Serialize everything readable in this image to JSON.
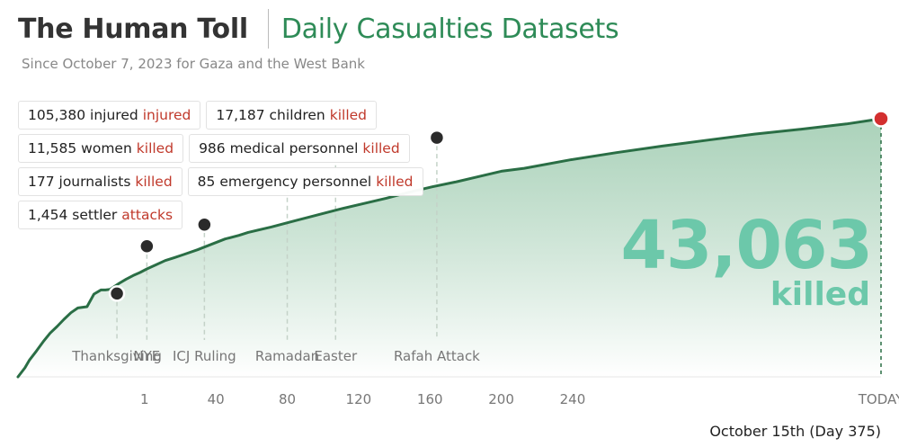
{
  "header": {
    "title": "The Human Toll",
    "subtitle": "Daily Casualties Datasets",
    "caption": "Since October 7, 2023 for Gaza and the West Bank"
  },
  "stats": [
    [
      {
        "number": "105,380",
        "label": "injured",
        "accent": "injured"
      },
      {
        "number": "17,187",
        "label": "children",
        "accent": "killed"
      }
    ],
    [
      {
        "number": "11,585",
        "label": "women",
        "accent": "killed"
      },
      {
        "number": "986",
        "label": "medical personnel",
        "accent": "killed"
      }
    ],
    [
      {
        "number": "177",
        "label": "journalists",
        "accent": "killed"
      },
      {
        "number": "85",
        "label": "emergency personnel",
        "accent": "killed"
      }
    ],
    [
      {
        "number": "1,454",
        "label": "settler",
        "accent": "attacks"
      }
    ]
  ],
  "total": {
    "value": "43,063",
    "label": "killed"
  },
  "footer": {
    "date": "October 15th (Day 375)"
  },
  "colors": {
    "line": "#2a6e45",
    "area_top": "#8fc3a3",
    "accent_red": "#c0392b",
    "big_number": "#6cc8aa",
    "marker_dark": "#2b2b2b",
    "marker_end": "#d32f2f"
  },
  "chart_data": {
    "type": "area",
    "xlabel": "",
    "ylabel": "",
    "x_ticks": [
      {
        "value": 55,
        "label": "1"
      },
      {
        "value": 86,
        "label": "40"
      },
      {
        "value": 117,
        "label": "80"
      },
      {
        "value": 148,
        "label": "120"
      },
      {
        "value": 179,
        "label": "160"
      },
      {
        "value": 210,
        "label": "200"
      },
      {
        "value": 241,
        "label": "240"
      },
      {
        "value": 375,
        "label": "TODAY"
      }
    ],
    "x_range": [
      0,
      375
    ],
    "y_range": [
      0,
      43063
    ],
    "series": [
      {
        "x": [
          0,
          3,
          5,
          8,
          11,
          14,
          17,
          20,
          23,
          26,
          30,
          33,
          36,
          38,
          40,
          44,
          47,
          50,
          53,
          56,
          60,
          64,
          68,
          72,
          78,
          84,
          90,
          96,
          100,
          110,
          120,
          130,
          140,
          150,
          160,
          170,
          180,
          190,
          200,
          210,
          220,
          240,
          260,
          280,
          300,
          320,
          340,
          360,
          375
        ],
        "y": [
          0,
          1500,
          2800,
          4300,
          5900,
          7300,
          8400,
          9600,
          10700,
          11500,
          11700,
          13800,
          14500,
          14500,
          14600,
          15600,
          16300,
          16900,
          17400,
          18000,
          18700,
          19400,
          19900,
          20400,
          21200,
          22100,
          23000,
          23600,
          24100,
          25000,
          26000,
          27000,
          28000,
          28900,
          29800,
          30800,
          31700,
          32500,
          33400,
          34300,
          34800,
          36200,
          37400,
          38500,
          39500,
          40500,
          41300,
          42200,
          43063
        ]
      }
    ],
    "events": [
      {
        "label": "Thanksgiving",
        "x": 43,
        "y": 13900,
        "marker": true
      },
      {
        "label": "NYE",
        "x": 56,
        "y": 21800,
        "marker": true
      },
      {
        "label": "ICJ Ruling",
        "x": 81,
        "y": 25400,
        "marker": true
      },
      {
        "label": "Ramadan",
        "x": 117,
        "y": 32600,
        "marker": false
      },
      {
        "label": "Easter",
        "x": 138,
        "y": 35300,
        "marker": false
      },
      {
        "label": "Rafah Attack",
        "x": 182,
        "y": 39900,
        "marker": true
      }
    ],
    "end_marker": {
      "x": 375,
      "y": 43063
    },
    "grid": false,
    "legend": "none"
  }
}
